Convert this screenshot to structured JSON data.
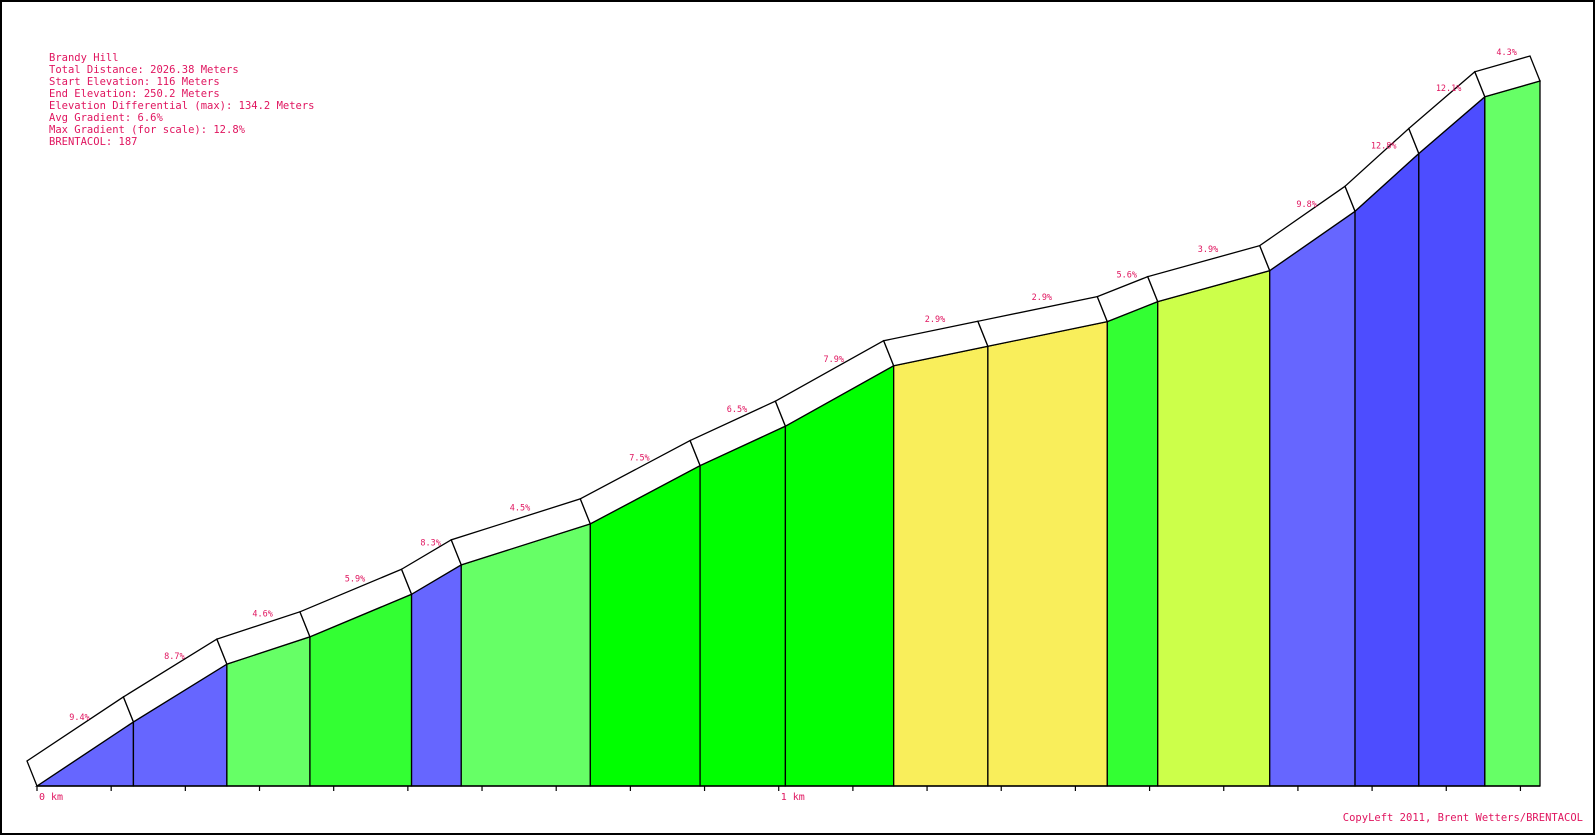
{
  "info": {
    "name": "Brandy Hill",
    "total_distance": "Total Distance: 2026.38 Meters",
    "start_elevation": "Start Elevation: 116 Meters",
    "end_elevation": "End Elevation: 250.2 Meters",
    "elevation_differential": "Elevation Differential (max): 134.2 Meters",
    "avg_gradient": "Avg Gradient: 6.6%",
    "max_gradient": "Max Gradient (for scale): 12.8%",
    "brentacol": "BRENTACOL: 187"
  },
  "copyleft": "CopyLeft 2011, Brent Wetters/BRENTACOL",
  "colors": {
    "label": "#e0155f",
    "gradient_bands": {
      "2.9": "#f9ee5b",
      "3.9": "#ccff4a",
      "4.5": "#66ff66",
      "5.6": "#33ff33",
      "7.5": "#00ff00",
      "8.7": "#6666ff",
      "12.1": "#4d4dff"
    }
  },
  "chart_data": {
    "type": "area",
    "title": "Brandy Hill",
    "x_unit": "m",
    "y_unit": "m",
    "xlim": [
      0,
      2026.38
    ],
    "ylim": [
      116,
      250.2
    ],
    "x_tick_labels": [
      {
        "x": 0,
        "label": "0 km"
      },
      {
        "x": 1000,
        "label": "1 km"
      }
    ],
    "x_minor_tick_spacing": 100,
    "segments": [
      {
        "x_start": 0,
        "x_end": 130,
        "elev_start": 116.0,
        "elev_end": 128.2,
        "gradient": 9.4,
        "label": "9.4%",
        "color": "#6666ff"
      },
      {
        "x_start": 130,
        "x_end": 256,
        "elev_start": 128.2,
        "elev_end": 139.2,
        "gradient": 8.7,
        "label": "8.7%",
        "color": "#6666ff"
      },
      {
        "x_start": 256,
        "x_end": 368,
        "elev_start": 139.2,
        "elev_end": 144.4,
        "gradient": 4.6,
        "label": "4.6%",
        "color": "#66ff66"
      },
      {
        "x_start": 368,
        "x_end": 505,
        "elev_start": 144.4,
        "elev_end": 152.5,
        "gradient": 5.9,
        "label": "5.9%",
        "color": "#33ff33"
      },
      {
        "x_start": 505,
        "x_end": 572,
        "elev_start": 152.5,
        "elev_end": 158.1,
        "gradient": 8.3,
        "label": "8.3%",
        "color": "#6666ff"
      },
      {
        "x_start": 572,
        "x_end": 746,
        "elev_start": 158.1,
        "elev_end": 165.9,
        "gradient": 4.5,
        "label": "4.5%",
        "color": "#66ff66"
      },
      {
        "x_start": 746,
        "x_end": 894,
        "elev_start": 165.9,
        "elev_end": 177.0,
        "gradient": 7.5,
        "label": "7.5%",
        "color": "#00ff00"
      },
      {
        "x_start": 894,
        "x_end": 1009,
        "elev_start": 177.0,
        "elev_end": 184.5,
        "gradient": 6.5,
        "label": "6.5%",
        "color": "#00ff00"
      },
      {
        "x_start": 1009,
        "x_end": 1155,
        "elev_start": 184.5,
        "elev_end": 196.0,
        "gradient": 7.9,
        "label": "7.9%",
        "color": "#00ff00"
      },
      {
        "x_start": 1155,
        "x_end": 1282,
        "elev_start": 196.0,
        "elev_end": 199.7,
        "gradient": 2.9,
        "label": "2.9%",
        "color": "#f9ee5b"
      },
      {
        "x_start": 1282,
        "x_end": 1443,
        "elev_start": 199.7,
        "elev_end": 204.4,
        "gradient": 2.9,
        "label": "2.9%",
        "color": "#f9ee5b"
      },
      {
        "x_start": 1443,
        "x_end": 1511,
        "elev_start": 204.4,
        "elev_end": 208.2,
        "gradient": 5.6,
        "label": "5.6%",
        "color": "#33ff33"
      },
      {
        "x_start": 1511,
        "x_end": 1662,
        "elev_start": 208.2,
        "elev_end": 214.1,
        "gradient": 3.9,
        "label": "3.9%",
        "color": "#ccff4a"
      },
      {
        "x_start": 1662,
        "x_end": 1777,
        "elev_start": 214.1,
        "elev_end": 225.4,
        "gradient": 9.8,
        "label": "9.8%",
        "color": "#6666ff"
      },
      {
        "x_start": 1777,
        "x_end": 1863,
        "elev_start": 225.4,
        "elev_end": 236.4,
        "gradient": 12.8,
        "label": "12.8%",
        "color": "#4d4dff"
      },
      {
        "x_start": 1863,
        "x_end": 1952,
        "elev_start": 236.4,
        "elev_end": 247.2,
        "gradient": 12.1,
        "label": "12.1%",
        "color": "#4d4dff"
      },
      {
        "x_start": 1952,
        "x_end": 2026.38,
        "elev_start": 247.2,
        "elev_end": 250.2,
        "gradient": 4.3,
        "label": "4.3%",
        "color": "#66ff66"
      }
    ]
  }
}
